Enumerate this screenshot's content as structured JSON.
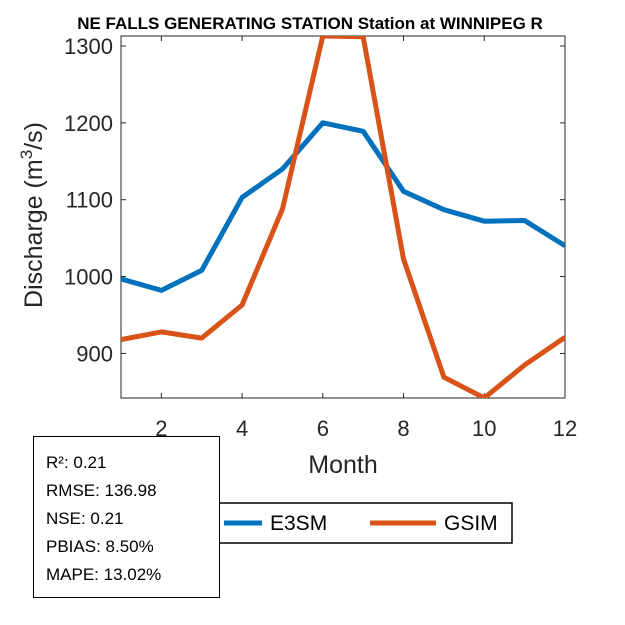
{
  "chart_data": {
    "type": "line",
    "title": "NE FALLS GENERATING STATION  Station at  WINNIPEG R",
    "xlabel": "Month",
    "ylabel_main": "Discharge (m",
    "ylabel_sup": "3",
    "ylabel_end": "/s)",
    "x": [
      1,
      2,
      3,
      4,
      5,
      6,
      7,
      8,
      9,
      10,
      11,
      12
    ],
    "xlim": [
      1,
      12
    ],
    "ylim": [
      842,
      1313
    ],
    "xticks": [
      2,
      4,
      6,
      8,
      10,
      12
    ],
    "yticks": [
      900,
      1000,
      1100,
      1200,
      1300
    ],
    "grid": false,
    "legend_placement": "bottom-outside",
    "series": [
      {
        "name": "E3SM",
        "color": "#0072BD",
        "values": [
          997,
          982,
          1008,
          1103,
          1140,
          1200,
          1189,
          1111,
          1087,
          1072,
          1073,
          1040
        ]
      },
      {
        "name": "GSIM",
        "color": "#D95319",
        "values": [
          918,
          928,
          920,
          963,
          1088,
          1313,
          1312,
          1023,
          869,
          842,
          885,
          921
        ]
      }
    ]
  },
  "stats": {
    "r2": "R²: 0.21",
    "rmse": "RMSE: 136.98",
    "nse": "NSE: 0.21",
    "pbias": "PBIAS: 8.50%",
    "mape": "MAPE: 13.02%"
  }
}
